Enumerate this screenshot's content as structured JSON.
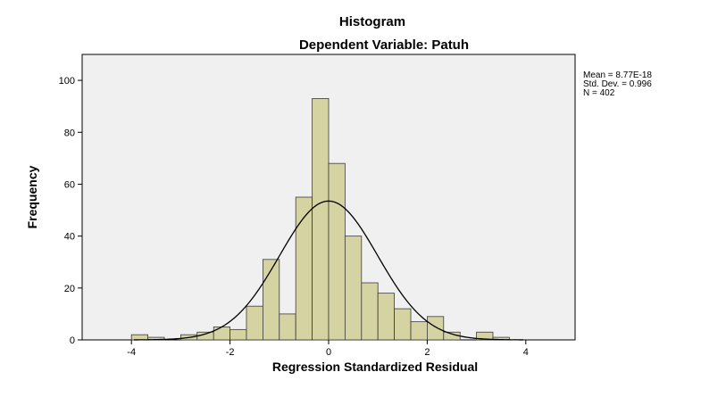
{
  "chart_data": {
    "type": "bar",
    "title": "Histogram",
    "subtitle": "Dependent Variable: Patuh",
    "xlabel": "Regression Standardized Residual",
    "ylabel": "Frequency",
    "xlim": [
      -5,
      5
    ],
    "ylim": [
      0,
      110
    ],
    "xticks": [
      -4,
      -2,
      0,
      2,
      4
    ],
    "yticks": [
      0,
      20,
      40,
      60,
      80,
      100
    ],
    "bin_width": 0.333,
    "bins": [
      {
        "start": -4.0,
        "end": -3.667,
        "count": 2
      },
      {
        "start": -3.667,
        "end": -3.333,
        "count": 1
      },
      {
        "start": -3.333,
        "end": -3.0,
        "count": 0
      },
      {
        "start": -3.0,
        "end": -2.667,
        "count": 2
      },
      {
        "start": -2.667,
        "end": -2.333,
        "count": 3
      },
      {
        "start": -2.333,
        "end": -2.0,
        "count": 5
      },
      {
        "start": -2.0,
        "end": -1.667,
        "count": 4
      },
      {
        "start": -1.667,
        "end": -1.333,
        "count": 13
      },
      {
        "start": -1.333,
        "end": -1.0,
        "count": 31
      },
      {
        "start": -1.0,
        "end": -0.667,
        "count": 10
      },
      {
        "start": -0.667,
        "end": -0.333,
        "count": 55
      },
      {
        "start": -0.333,
        "end": 0.0,
        "count": 93
      },
      {
        "start": 0.0,
        "end": 0.333,
        "count": 68
      },
      {
        "start": 0.333,
        "end": 0.667,
        "count": 40
      },
      {
        "start": 0.667,
        "end": 1.0,
        "count": 22
      },
      {
        "start": 1.0,
        "end": 1.333,
        "count": 18
      },
      {
        "start": 1.333,
        "end": 1.667,
        "count": 12
      },
      {
        "start": 1.667,
        "end": 2.0,
        "count": 7
      },
      {
        "start": 2.0,
        "end": 2.333,
        "count": 9
      },
      {
        "start": 2.333,
        "end": 2.667,
        "count": 3
      },
      {
        "start": 2.667,
        "end": 3.0,
        "count": 0
      },
      {
        "start": 3.0,
        "end": 3.333,
        "count": 3
      },
      {
        "start": 3.333,
        "end": 3.667,
        "count": 1
      }
    ],
    "normal_curve": {
      "mean": 0,
      "sd": 0.996,
      "peak": 53.5
    },
    "stats": {
      "mean_label": "Mean = 8.77E-18",
      "sd_label": "Std. Dev. = 0.996",
      "n_label": "N = 402"
    },
    "grid": false,
    "legend_position": "top-right"
  },
  "colors": {
    "bar_fill": "#d6d3a3",
    "bar_stroke": "#3a3a3a",
    "plot_background": "#f0f0f0",
    "curve": "#000000"
  }
}
